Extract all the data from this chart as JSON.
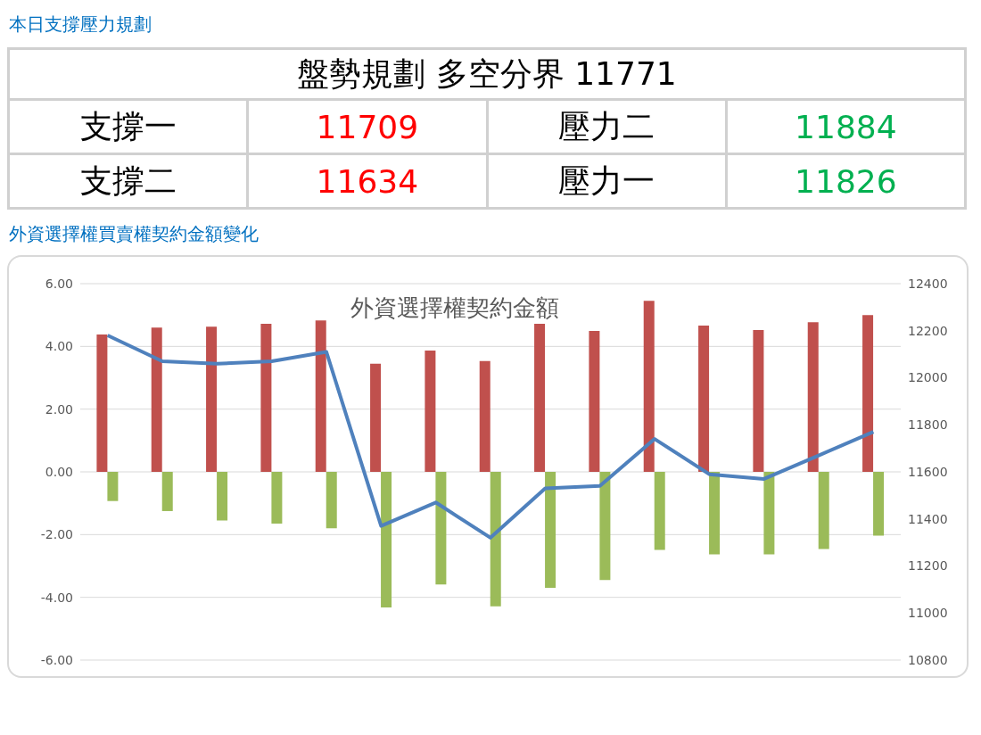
{
  "chart_data": [
    {
      "type": "other",
      "title": "本日支撐壓力規劃",
      "annotations": [
        "盤勢規劃 多空分界 11771",
        "支撐一",
        "11709",
        "壓力二",
        "11884",
        "支撐二",
        "11634",
        "壓力一",
        "11826"
      ]
    },
    {
      "type": "bar",
      "subtitle": "外資選擇權買賣權契約金額變化",
      "title": "外資選擇權契約金額",
      "categories": [
        null,
        null,
        null,
        null,
        null,
        null,
        null,
        null,
        null,
        null,
        null,
        null,
        null,
        null,
        null
      ],
      "series": [
        {
          "type": "bar",
          "color": "#c0504d",
          "values": [
            4.38,
            4.6,
            4.63,
            4.72,
            4.83,
            3.45,
            3.87,
            3.53,
            4.72,
            4.49,
            5.45,
            4.66,
            4.52,
            4.77,
            5.0
          ]
        },
        {
          "type": "bar",
          "color": "#9bbb59",
          "values": [
            -0.93,
            -1.25,
            -1.55,
            -1.65,
            -1.8,
            -4.32,
            -3.59,
            -4.29,
            -3.7,
            -3.45,
            -2.49,
            -2.63,
            -2.63,
            -2.46,
            -2.03
          ]
        },
        {
          "type": "line",
          "axis": "y2",
          "color": "#4f81bd",
          "values": [
            12180,
            12070,
            12060,
            12070,
            12110,
            11370,
            11470,
            11320,
            11530,
            11540,
            11740,
            11590,
            11570,
            11670,
            11770
          ]
        }
      ],
      "ylim": [
        -6,
        6
      ],
      "yticks": [
        {
          "value": -6,
          "label": "-6.00"
        },
        {
          "value": -4,
          "label": "-4.00"
        },
        {
          "value": -2,
          "label": "-2.00"
        },
        {
          "value": 0,
          "label": "0.00"
        },
        {
          "value": 2,
          "label": "2.00"
        },
        {
          "value": 4,
          "label": "4.00"
        },
        {
          "value": 6,
          "label": "6.00"
        }
      ],
      "y2lim": [
        10800,
        12400
      ],
      "y2ticks": [
        10800,
        11000,
        11200,
        11400,
        11600,
        11800,
        12000,
        12200,
        12400
      ],
      "grid": "y",
      "legend": false,
      "marker": "none",
      "line_style": "solid"
    }
  ]
}
